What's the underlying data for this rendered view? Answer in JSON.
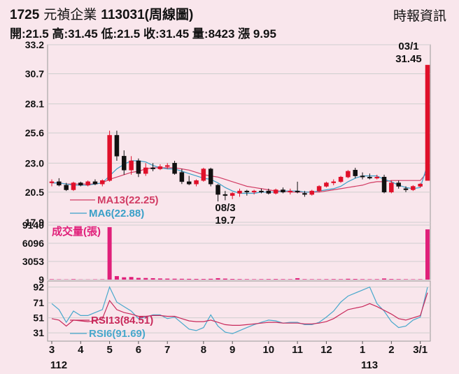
{
  "header": {
    "code": "1725",
    "name": "元禎企業",
    "period": "113031(周線圖)",
    "source": "時報資訊",
    "open_label": "開",
    "open": "21.5",
    "high_label": "高",
    "high": "31.45",
    "low_label": "低",
    "low": "21.5",
    "close_label": "收",
    "close": "31.45",
    "volume_label": "量",
    "volume": "8423",
    "change_label": "漲",
    "change": "9.95"
  },
  "colors": {
    "up": "#e0102a",
    "down": "#111111",
    "ma13": "#d23c64",
    "ma6": "#3aa0c8",
    "volume": "#e0207a",
    "rsi13": "#c8285a",
    "rsi6": "#48a8cc",
    "grid": "#cfcfcf"
  },
  "chart_data": [
    {
      "type": "candlestick",
      "ylim": [
        17.9,
        33.2
      ],
      "yticks": [
        "33.2",
        "30.7",
        "28.1",
        "25.6",
        "23.0",
        "20.5",
        "17.9"
      ],
      "xticks": [
        "3",
        "4",
        "5",
        "6",
        "7",
        "8",
        "9",
        "10",
        "11",
        "12",
        "1",
        "2",
        "3/1"
      ],
      "xyear_labels": [
        "112",
        "113"
      ],
      "candles": [
        [
          21.3,
          21.6,
          21.0,
          21.4
        ],
        [
          21.4,
          21.7,
          21.0,
          21.1
        ],
        [
          21.1,
          21.3,
          20.6,
          20.7
        ],
        [
          20.7,
          21.4,
          20.6,
          21.3
        ],
        [
          21.3,
          21.4,
          21.0,
          21.1
        ],
        [
          21.1,
          21.5,
          21.0,
          21.4
        ],
        [
          21.4,
          21.6,
          21.1,
          21.2
        ],
        [
          21.2,
          21.6,
          21.0,
          21.5
        ],
        [
          21.5,
          25.8,
          21.4,
          25.4
        ],
        [
          25.4,
          25.8,
          23.2,
          23.6
        ],
        [
          23.6,
          24.1,
          22.0,
          22.4
        ],
        [
          22.4,
          23.6,
          22.0,
          23.2
        ],
        [
          23.2,
          23.4,
          21.8,
          22.1
        ],
        [
          22.1,
          23.0,
          21.9,
          22.6
        ],
        [
          22.6,
          23.0,
          22.3,
          22.5
        ],
        [
          22.5,
          22.9,
          22.4,
          22.7
        ],
        [
          22.7,
          23.0,
          22.5,
          22.8
        ],
        [
          23.0,
          23.2,
          22.0,
          22.1
        ],
        [
          22.2,
          22.5,
          21.2,
          21.4
        ],
        [
          21.4,
          21.9,
          21.1,
          21.2
        ],
        [
          21.2,
          21.6,
          21.0,
          21.5
        ],
        [
          21.5,
          22.6,
          21.4,
          22.5
        ],
        [
          22.5,
          22.6,
          21.0,
          21.2
        ],
        [
          21.1,
          21.2,
          19.7,
          20.3
        ],
        [
          20.3,
          20.6,
          19.8,
          20.2
        ],
        [
          20.2,
          20.5,
          19.9,
          20.4
        ],
        [
          20.4,
          20.8,
          20.1,
          20.6
        ],
        [
          20.6,
          20.7,
          20.2,
          20.5
        ],
        [
          20.5,
          20.7,
          20.3,
          20.6
        ],
        [
          20.6,
          20.8,
          20.4,
          20.5
        ],
        [
          20.6,
          20.8,
          20.3,
          20.4
        ],
        [
          20.4,
          20.8,
          20.3,
          20.7
        ],
        [
          20.7,
          20.9,
          20.4,
          20.5
        ],
        [
          20.5,
          20.8,
          20.3,
          20.6
        ],
        [
          20.6,
          21.4,
          20.4,
          20.5
        ],
        [
          20.4,
          20.6,
          20.1,
          20.3
        ],
        [
          20.3,
          20.7,
          20.2,
          20.6
        ],
        [
          20.6,
          21.1,
          20.5,
          21.0
        ],
        [
          21.0,
          21.4,
          20.9,
          21.3
        ],
        [
          21.3,
          21.6,
          21.1,
          21.4
        ],
        [
          21.4,
          21.9,
          21.3,
          21.8
        ],
        [
          21.8,
          22.4,
          21.7,
          22.3
        ],
        [
          22.4,
          22.6,
          21.7,
          21.9
        ],
        [
          21.9,
          22.2,
          21.6,
          21.8
        ],
        [
          21.8,
          22.1,
          21.6,
          21.7
        ],
        [
          21.7,
          22.0,
          21.6,
          21.8
        ],
        [
          21.8,
          22.0,
          20.4,
          20.5
        ],
        [
          20.5,
          21.5,
          20.4,
          21.3
        ],
        [
          21.3,
          21.5,
          20.8,
          21.0
        ],
        [
          20.8,
          21.0,
          20.5,
          20.7
        ],
        [
          20.7,
          21.1,
          20.6,
          21.0
        ],
        [
          21.0,
          21.3,
          20.9,
          21.2
        ],
        [
          21.5,
          31.45,
          21.5,
          31.45
        ]
      ],
      "series": [
        {
          "name": "MA13(22.25)",
          "values": [
            21.3,
            21.3,
            21.2,
            21.2,
            21.2,
            21.2,
            21.2,
            21.3,
            21.6,
            21.8,
            22.0,
            22.2,
            22.3,
            22.5,
            22.6,
            22.6,
            22.6,
            22.6,
            22.5,
            22.4,
            22.2,
            22.0,
            21.9,
            21.8,
            21.6,
            21.4,
            21.2,
            21.0,
            20.9,
            20.8,
            20.7,
            20.6,
            20.6,
            20.5,
            20.5,
            20.5,
            20.5,
            20.5,
            20.6,
            20.7,
            20.8,
            20.9,
            21.0,
            21.1,
            21.3,
            21.4,
            21.4,
            21.5,
            21.5,
            21.5,
            21.5,
            21.5,
            22.25
          ]
        },
        {
          "name": "MA6(22.88)",
          "values": [
            21.3,
            21.3,
            21.2,
            21.1,
            21.1,
            21.1,
            21.2,
            21.3,
            21.9,
            22.5,
            22.9,
            23.2,
            23.2,
            23.1,
            22.8,
            22.6,
            22.5,
            22.5,
            22.3,
            22.1,
            21.9,
            21.7,
            21.6,
            21.3,
            20.9,
            20.6,
            20.4,
            20.4,
            20.4,
            20.5,
            20.5,
            20.5,
            20.6,
            20.6,
            20.6,
            20.5,
            20.5,
            20.6,
            20.7,
            20.8,
            21.0,
            21.4,
            21.7,
            21.9,
            21.9,
            21.9,
            21.6,
            21.4,
            21.1,
            20.9,
            20.8,
            20.9,
            22.88
          ]
        }
      ],
      "annotations": [
        {
          "date": "03/1",
          "value": "31.45"
        },
        {
          "date": "08/3",
          "value": "19.7"
        }
      ]
    },
    {
      "type": "bar",
      "title": "成交量(張)",
      "yticks": [
        "9140",
        "6096",
        "3053",
        "9"
      ],
      "ylim": [
        9,
        9140
      ],
      "values": [
        80,
        60,
        50,
        90,
        40,
        40,
        60,
        70,
        8800,
        600,
        400,
        450,
        300,
        280,
        250,
        200,
        180,
        160,
        150,
        140,
        130,
        120,
        150,
        250,
        180,
        120,
        100,
        90,
        80,
        90,
        100,
        110,
        90,
        85,
        250,
        90,
        80,
        80,
        90,
        100,
        90,
        150,
        120,
        90,
        80,
        90,
        200,
        110,
        90,
        80,
        70,
        80,
        8423
      ]
    },
    {
      "type": "line",
      "yticks": [
        "92",
        "71",
        "51",
        "31"
      ],
      "ylim": [
        20,
        100
      ],
      "series": [
        {
          "name": "RSI13(84.51)",
          "values": [
            50,
            48,
            40,
            48,
            47,
            46,
            47,
            50,
            74,
            62,
            58,
            56,
            53,
            53,
            54,
            54,
            53,
            53,
            50,
            47,
            46,
            46,
            48,
            45,
            42,
            41,
            41,
            42,
            43,
            44,
            45,
            45,
            44,
            44,
            44,
            43,
            43,
            44,
            46,
            50,
            56,
            62,
            64,
            66,
            70,
            66,
            61,
            56,
            50,
            48,
            51,
            54,
            84.51
          ]
        },
        {
          "name": "RSI6(91.69)",
          "values": [
            70,
            62,
            45,
            60,
            54,
            54,
            58,
            62,
            92,
            72,
            66,
            60,
            50,
            52,
            55,
            55,
            50,
            52,
            44,
            36,
            34,
            38,
            55,
            40,
            32,
            30,
            34,
            38,
            42,
            45,
            48,
            47,
            44,
            45,
            45,
            42,
            42,
            45,
            52,
            60,
            72,
            80,
            84,
            88,
            92,
            70,
            60,
            46,
            38,
            40,
            48,
            52,
            91.69
          ]
        }
      ]
    }
  ]
}
